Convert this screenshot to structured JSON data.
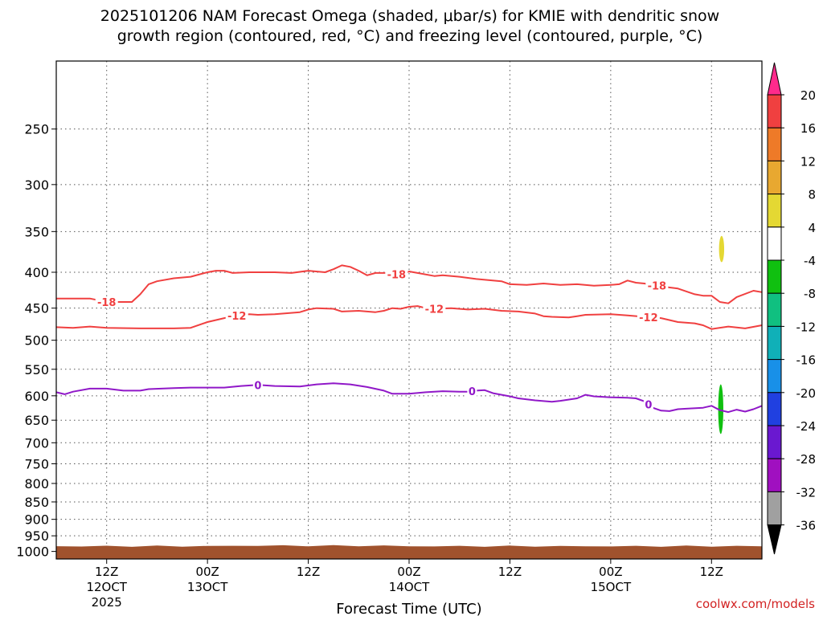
{
  "chart_data": {
    "type": "time-height",
    "title": "2025101206 NAM Forecast Omega (shaded, μbar/s) for KMIE with dendritic snow growth region (contoured, red, °C) and freezing level (contoured, purple, °C)",
    "title_lines": [
      "2025101206 NAM Forecast Omega (shaded, μbar/s) for KMIE with dendritic snow",
      "growth region (contoured, red, °C) and freezing level (contoured, purple, °C)"
    ],
    "xlabel": "Forecast Time (UTC)",
    "credit": "coolwx.com/models",
    "x_range_hours": [
      0,
      84
    ],
    "y_range_hpa": [
      200,
      1025
    ],
    "y_ticks": [
      250,
      300,
      350,
      400,
      450,
      500,
      550,
      600,
      650,
      700,
      750,
      800,
      850,
      900,
      950,
      1000
    ],
    "x_ticks": [
      {
        "hour": 6,
        "label": "12Z",
        "sub": "12OCT",
        "year": "2025"
      },
      {
        "hour": 18,
        "label": "00Z",
        "sub": "13OCT"
      },
      {
        "hour": 30,
        "label": "12Z"
      },
      {
        "hour": 42,
        "label": "00Z",
        "sub": "14OCT"
      },
      {
        "hour": 54,
        "label": "12Z"
      },
      {
        "hour": 66,
        "label": "00Z",
        "sub": "15OCT"
      },
      {
        "hour": 78,
        "label": "12Z"
      }
    ],
    "colorbar": {
      "labels": [
        "20",
        "16",
        "12",
        "8",
        "4",
        "-4",
        "-8",
        "-12",
        "-16",
        "-20",
        "-24",
        "-28",
        "-32",
        "-36"
      ],
      "colors": [
        "#ff2a8c",
        "#f04040",
        "#ee7a28",
        "#e8a830",
        "#e4d833",
        "#ffffff",
        "#10c010",
        "#10c080",
        "#10b0b8",
        "#1890e8",
        "#2040e0",
        "#6a18d0",
        "#a010c0",
        "#a0a0a0",
        "#000000"
      ]
    },
    "series": [
      {
        "name": "-18",
        "color": "#f04040",
        "label_text": "-18",
        "label_hours": [
          6,
          40.5,
          71.5
        ],
        "points": [
          [
            0,
            436
          ],
          [
            4,
            436
          ],
          [
            6,
            441
          ],
          [
            9,
            441
          ],
          [
            10,
            430
          ],
          [
            11,
            416
          ],
          [
            12,
            412
          ],
          [
            14,
            408
          ],
          [
            16,
            406
          ],
          [
            18,
            400
          ],
          [
            19,
            398
          ],
          [
            20,
            398
          ],
          [
            21,
            401
          ],
          [
            23,
            400
          ],
          [
            26,
            400
          ],
          [
            28,
            401
          ],
          [
            30,
            398
          ],
          [
            32,
            400
          ],
          [
            33,
            396
          ],
          [
            34,
            391
          ],
          [
            35,
            393
          ],
          [
            36,
            398
          ],
          [
            37,
            404
          ],
          [
            38,
            401
          ],
          [
            40,
            401
          ],
          [
            41,
            404
          ],
          [
            42,
            399
          ],
          [
            43,
            401
          ],
          [
            45,
            405
          ],
          [
            46,
            404
          ],
          [
            48,
            406
          ],
          [
            50,
            409
          ],
          [
            53,
            412
          ],
          [
            54,
            416
          ],
          [
            56,
            417
          ],
          [
            58,
            415
          ],
          [
            60,
            417
          ],
          [
            62,
            416
          ],
          [
            64,
            418
          ],
          [
            66,
            417
          ],
          [
            67,
            416
          ],
          [
            68,
            411
          ],
          [
            69,
            414
          ],
          [
            70,
            415
          ],
          [
            72,
            419
          ],
          [
            74,
            422
          ],
          [
            76,
            430
          ],
          [
            77,
            432
          ],
          [
            78,
            432
          ],
          [
            79,
            441
          ],
          [
            80,
            443
          ],
          [
            81,
            434
          ],
          [
            83,
            425
          ],
          [
            84,
            427
          ]
        ]
      },
      {
        "name": "-12",
        "color": "#f04040",
        "label_text": "-12",
        "label_hours": [
          21.5,
          45,
          70.5
        ],
        "points": [
          [
            0,
            479
          ],
          [
            2,
            480
          ],
          [
            4,
            478
          ],
          [
            6,
            480
          ],
          [
            10,
            481
          ],
          [
            14,
            481
          ],
          [
            16,
            480
          ],
          [
            18,
            471
          ],
          [
            20,
            465
          ],
          [
            22,
            460
          ],
          [
            23,
            459
          ],
          [
            24,
            460
          ],
          [
            26,
            459
          ],
          [
            29,
            456
          ],
          [
            30,
            452
          ],
          [
            31,
            450
          ],
          [
            33,
            451
          ],
          [
            34,
            455
          ],
          [
            36,
            454
          ],
          [
            38,
            456
          ],
          [
            39,
            454
          ],
          [
            40,
            450
          ],
          [
            41,
            451
          ],
          [
            42,
            448
          ],
          [
            43,
            447
          ],
          [
            44,
            450
          ],
          [
            45,
            451
          ],
          [
            47,
            450
          ],
          [
            49,
            452
          ],
          [
            51,
            451
          ],
          [
            53,
            454
          ],
          [
            55,
            455
          ],
          [
            57,
            458
          ],
          [
            58,
            462
          ],
          [
            59,
            463
          ],
          [
            61,
            464
          ],
          [
            62,
            462
          ],
          [
            63,
            460
          ],
          [
            66,
            459
          ],
          [
            68,
            461
          ],
          [
            70,
            463
          ],
          [
            72,
            465
          ],
          [
            74,
            471
          ],
          [
            76,
            473
          ],
          [
            77,
            476
          ],
          [
            78,
            482
          ],
          [
            80,
            478
          ],
          [
            82,
            481
          ],
          [
            84,
            476
          ]
        ]
      },
      {
        "name": "0",
        "color": "#9018c8",
        "label_text": "0",
        "label_hours": [
          24,
          49.5,
          70.5
        ],
        "points": [
          [
            0,
            593
          ],
          [
            1,
            597
          ],
          [
            2,
            592
          ],
          [
            4,
            586
          ],
          [
            6,
            586
          ],
          [
            8,
            590
          ],
          [
            10,
            590
          ],
          [
            11,
            587
          ],
          [
            14,
            585
          ],
          [
            16,
            584
          ],
          [
            18,
            584
          ],
          [
            20,
            584
          ],
          [
            22,
            581
          ],
          [
            24,
            579
          ],
          [
            26,
            581
          ],
          [
            29,
            582
          ],
          [
            31,
            578
          ],
          [
            33,
            576
          ],
          [
            35,
            578
          ],
          [
            37,
            583
          ],
          [
            39,
            590
          ],
          [
            40,
            596
          ],
          [
            42,
            596
          ],
          [
            44,
            593
          ],
          [
            46,
            591
          ],
          [
            48,
            592
          ],
          [
            49,
            592
          ],
          [
            50,
            590
          ],
          [
            51,
            589
          ],
          [
            52,
            595
          ],
          [
            54,
            601
          ],
          [
            55,
            605
          ],
          [
            57,
            609
          ],
          [
            59,
            612
          ],
          [
            60,
            610
          ],
          [
            62,
            605
          ],
          [
            63,
            598
          ],
          [
            64,
            601
          ],
          [
            66,
            603
          ],
          [
            68,
            604
          ],
          [
            69,
            605
          ],
          [
            70,
            611
          ],
          [
            71,
            624
          ],
          [
            72,
            630
          ],
          [
            73,
            631
          ],
          [
            74,
            627
          ],
          [
            75,
            626
          ],
          [
            77,
            624
          ],
          [
            78,
            620
          ],
          [
            79,
            629
          ],
          [
            80,
            633
          ],
          [
            81,
            628
          ],
          [
            82,
            632
          ],
          [
            83,
            627
          ],
          [
            84,
            620
          ]
        ]
      }
    ],
    "omega_blobs": [
      {
        "name": "yellow-omega-patch",
        "color": "#e4d833",
        "hour": 79.2,
        "p_top": 355,
        "p_bottom": 387
      },
      {
        "name": "green-omega-patch",
        "color": "#10c010",
        "hour": 79.1,
        "p_top": 578,
        "p_bottom": 680
      }
    ],
    "terrain": {
      "color": "#a0522d",
      "surface_hpa": 983
    }
  }
}
